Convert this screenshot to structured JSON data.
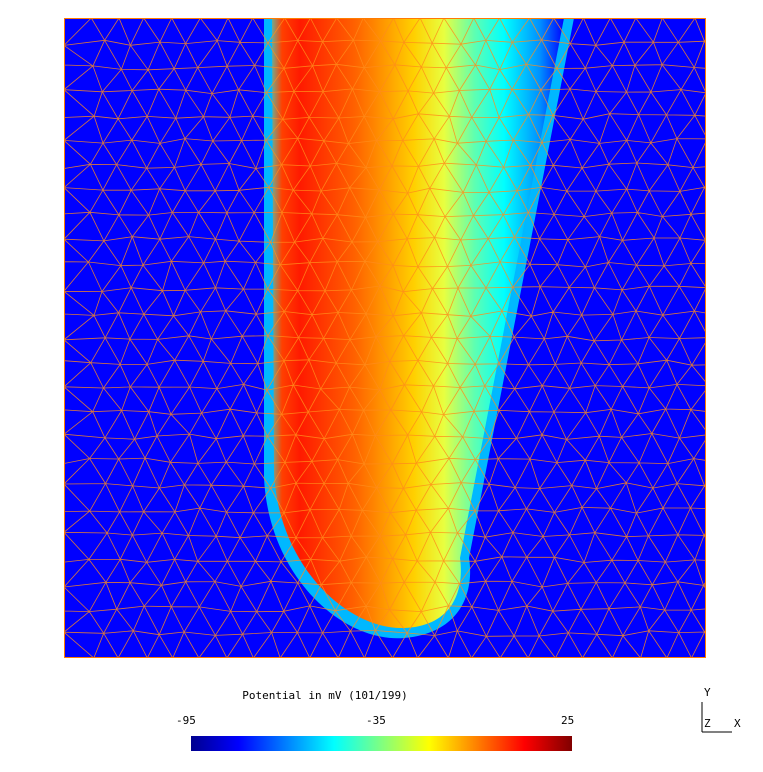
{
  "colorbar": {
    "title": "Potential in mV (101/199)",
    "min_label": "-95",
    "mid_label": "-35",
    "max_label": "25",
    "colors": [
      "#00008f",
      "#0000ff",
      "#0080ff",
      "#00ffff",
      "#80ff80",
      "#ffff00",
      "#ff8000",
      "#ff0000",
      "#800000"
    ]
  },
  "axes_triad": {
    "y": "Y",
    "z": "Z",
    "x": "X"
  },
  "plot": {
    "background_color": "#0000ff",
    "mesh_color": "#ff8c1a",
    "border_color": "#ff7b00"
  }
}
